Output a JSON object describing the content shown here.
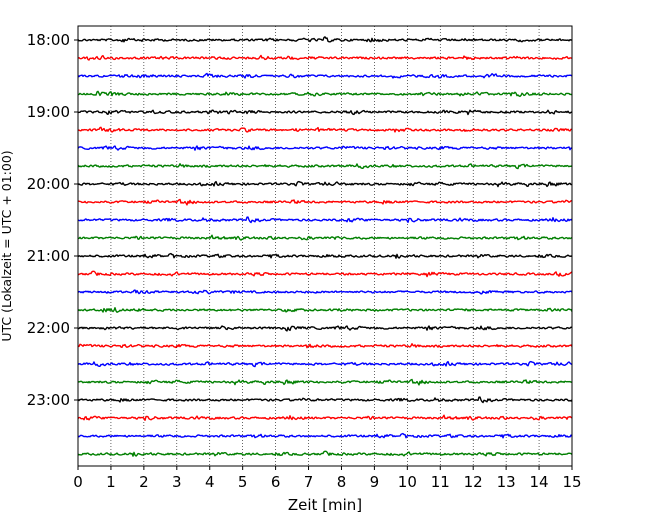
{
  "chart_data": {
    "type": "line",
    "title": "",
    "xlabel": "Zeit  [min]",
    "ylabel": "UTC (Lokalzeit = UTC + 01:00)",
    "xlim": [
      0,
      15
    ],
    "xticks": [
      0,
      1,
      2,
      3,
      4,
      5,
      6,
      7,
      8,
      9,
      10,
      11,
      12,
      13,
      14,
      15
    ],
    "xtick_labels": [
      "0",
      "1",
      "2",
      "3",
      "4",
      "5",
      "6",
      "7",
      "8",
      "9",
      "10",
      "11",
      "12",
      "13",
      "14",
      "15"
    ],
    "ytick_labels": [
      "18:00",
      "19:00",
      "20:00",
      "21:00",
      "22:00",
      "23:00"
    ],
    "grid": "vertical dotted at each minute",
    "trace_colors": [
      "#000000",
      "#ff0000",
      "#0000ff",
      "#007f00"
    ],
    "traces_per_hour": 4,
    "trace_start_times": [
      "18:00",
      "18:15",
      "18:30",
      "18:45",
      "19:00",
      "19:15",
      "19:30",
      "19:45",
      "20:00",
      "20:15",
      "20:30",
      "20:45",
      "21:00",
      "21:15",
      "21:30",
      "21:45",
      "22:00",
      "22:15",
      "22:30",
      "22:45",
      "23:00",
      "23:15",
      "23:30",
      "23:45"
    ]
  }
}
